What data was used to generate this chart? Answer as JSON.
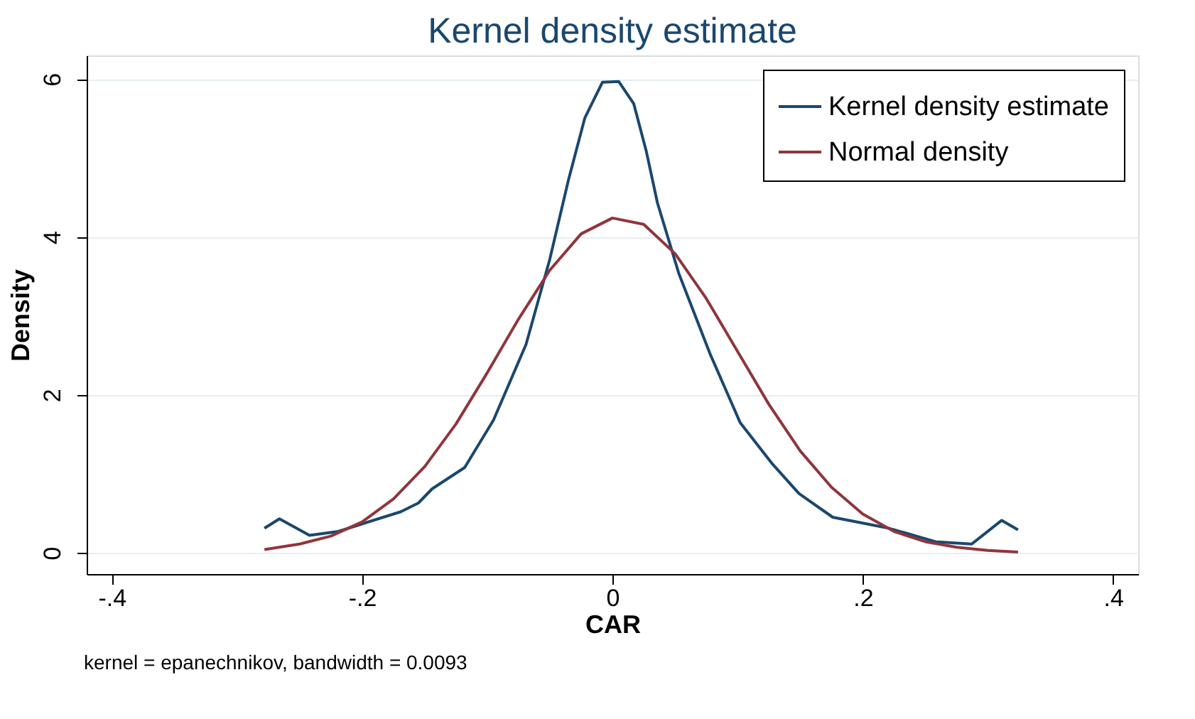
{
  "chart_data": {
    "type": "line",
    "title": "Kernel density estimate",
    "xlabel": "CAR",
    "ylabel": "Density",
    "annotations": [
      "kernel = epanechnikov, bandwidth = 0.0093"
    ],
    "xlim": [
      -0.42,
      0.42
    ],
    "ylim": [
      -0.27,
      6.3
    ],
    "xticks": [
      {
        "value": -0.4,
        "label": "-.4"
      },
      {
        "value": -0.2,
        "label": "-.2"
      },
      {
        "value": 0,
        "label": "0"
      },
      {
        "value": 0.2,
        "label": ".2"
      },
      {
        "value": 0.4,
        "label": ".4"
      }
    ],
    "yticks": [
      0,
      2,
      4,
      6
    ],
    "grid": "y",
    "legend": "top right",
    "marker": "none",
    "line_style": "solid",
    "series": [
      {
        "name": "Kernel density estimate",
        "color": "#1a476f",
        "x": [
          -0.278,
          -0.266,
          -0.242,
          -0.219,
          -0.169,
          -0.155,
          -0.144,
          -0.118,
          -0.095,
          -0.069,
          -0.05,
          -0.035,
          -0.022,
          -0.008,
          0.005,
          0.017,
          0.027,
          0.036,
          0.053,
          0.078,
          0.102,
          0.127,
          0.149,
          0.176,
          0.221,
          0.258,
          0.287,
          0.311,
          0.324
        ],
        "values": [
          0.31,
          0.43,
          0.22,
          0.27,
          0.52,
          0.63,
          0.81,
          1.08,
          1.68,
          2.64,
          3.72,
          4.73,
          5.51,
          5.96,
          5.97,
          5.69,
          5.09,
          4.43,
          3.54,
          2.52,
          1.65,
          1.14,
          0.75,
          0.45,
          0.31,
          0.14,
          0.11,
          0.41,
          0.29
        ]
      },
      {
        "name": "Normal density",
        "color": "#90353b",
        "x": [
          -0.278,
          -0.25,
          -0.225,
          -0.2,
          -0.175,
          -0.15,
          -0.125,
          -0.1,
          -0.075,
          -0.05,
          -0.025,
          0,
          0.025,
          0.05,
          0.075,
          0.1,
          0.125,
          0.15,
          0.175,
          0.2,
          0.225,
          0.25,
          0.275,
          0.3,
          0.324
        ],
        "values": [
          0.04,
          0.11,
          0.21,
          0.39,
          0.68,
          1.09,
          1.63,
          2.28,
          2.96,
          3.58,
          4.04,
          4.24,
          4.16,
          3.79,
          3.22,
          2.55,
          1.88,
          1.29,
          0.83,
          0.49,
          0.27,
          0.14,
          0.07,
          0.03,
          0.01
        ]
      }
    ]
  }
}
